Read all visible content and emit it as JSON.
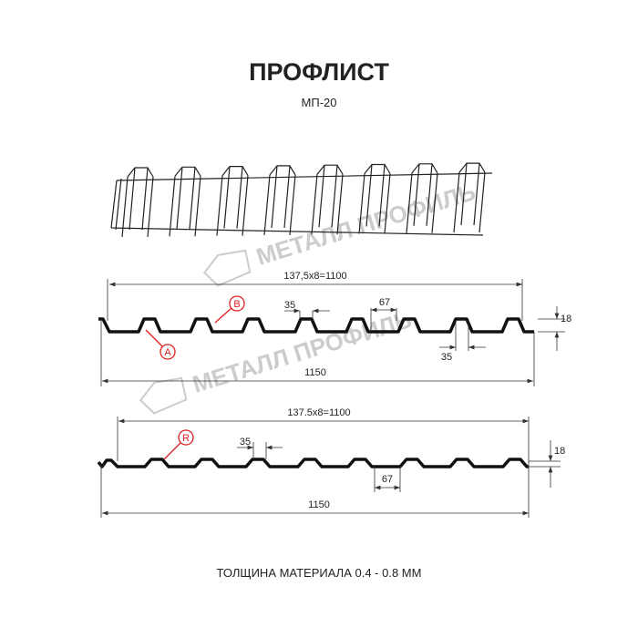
{
  "title": "ПРОФЛИСТ",
  "subtitle": "МП-20",
  "footer": "ТОЛЩИНА МАТЕРИАЛА 0.4 - 0.8 ММ",
  "watermark": "МЕТАЛЛ ПРОФИЛЬ",
  "profile_a": {
    "pitch_dim": "137,5x8=1100",
    "total_dim": "1150",
    "top_flat": "35",
    "bottom_flat_top": "67",
    "bottom_dim": "35",
    "height": "18",
    "label_a": "A",
    "label_b": "B"
  },
  "profile_b": {
    "pitch_dim": "137.5x8=1100",
    "total_dim": "1150",
    "top_flat": "35",
    "bottom_flat": "67",
    "height": "18",
    "label_r": "R"
  },
  "colors": {
    "line": "#111111",
    "dim": "#333333",
    "marker": "#e02020",
    "watermark": "#cccccc"
  }
}
